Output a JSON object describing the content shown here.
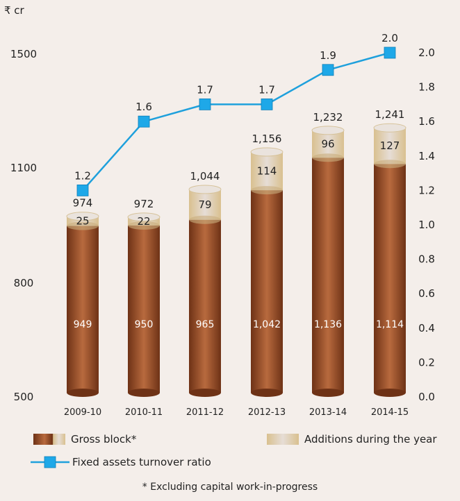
{
  "unit_label": "₹ cr",
  "legend": {
    "gross_block": "Gross block*",
    "additions": "Additions during the year",
    "ratio": "Fixed assets turnover ratio"
  },
  "footnote": "* Excluding capital work-in-progress",
  "colors": {
    "gross_block": "#a0522d",
    "gross_block_dark": "#6e3216",
    "additions": "#dcc9a6",
    "additions_light": "#e8dfd6",
    "line": "#1ea0dc",
    "marker": "#1ea8e8",
    "background": "#f4eeea"
  },
  "chart_data": {
    "type": "bar",
    "categories": [
      "2009-10",
      "2010-11",
      "2011-12",
      "2012-13",
      "2013-14",
      "2014-15"
    ],
    "series": [
      {
        "name": "Gross block*",
        "kind": "stacked-bar",
        "values": [
          949,
          950,
          965,
          1042,
          1136,
          1114
        ],
        "labels": [
          "949",
          "950",
          "965",
          "1,042",
          "1,136",
          "1,114"
        ]
      },
      {
        "name": "Additions during the year",
        "kind": "stacked-bar",
        "values": [
          25,
          22,
          79,
          114,
          96,
          127
        ],
        "labels": [
          "25",
          "22",
          "79",
          "114",
          "96",
          "127"
        ]
      },
      {
        "name": "Fixed assets turnover ratio",
        "kind": "line",
        "axis": "right",
        "values": [
          1.2,
          1.6,
          1.7,
          1.7,
          1.9,
          2.0
        ],
        "labels": [
          "1.2",
          "1.6",
          "1.7",
          "1.7",
          "1.9",
          "2.0"
        ]
      }
    ],
    "totals": [
      "974",
      "972",
      "1,044",
      "1,156",
      "1,232",
      "1,241"
    ],
    "left_axis": {
      "ticks": [
        500,
        800,
        1100,
        1500
      ],
      "tick_labels": [
        "500",
        "800",
        "1100",
        "1500"
      ]
    },
    "right_axis": {
      "ylim": [
        0,
        2.0
      ],
      "tick_labels": [
        "0.0",
        "0.2",
        "0.4",
        "0.6",
        "0.8",
        "1.0",
        "1.2",
        "1.4",
        "1.6",
        "1.8",
        "2.0"
      ]
    },
    "grid": false,
    "legend_position": "bottom"
  }
}
